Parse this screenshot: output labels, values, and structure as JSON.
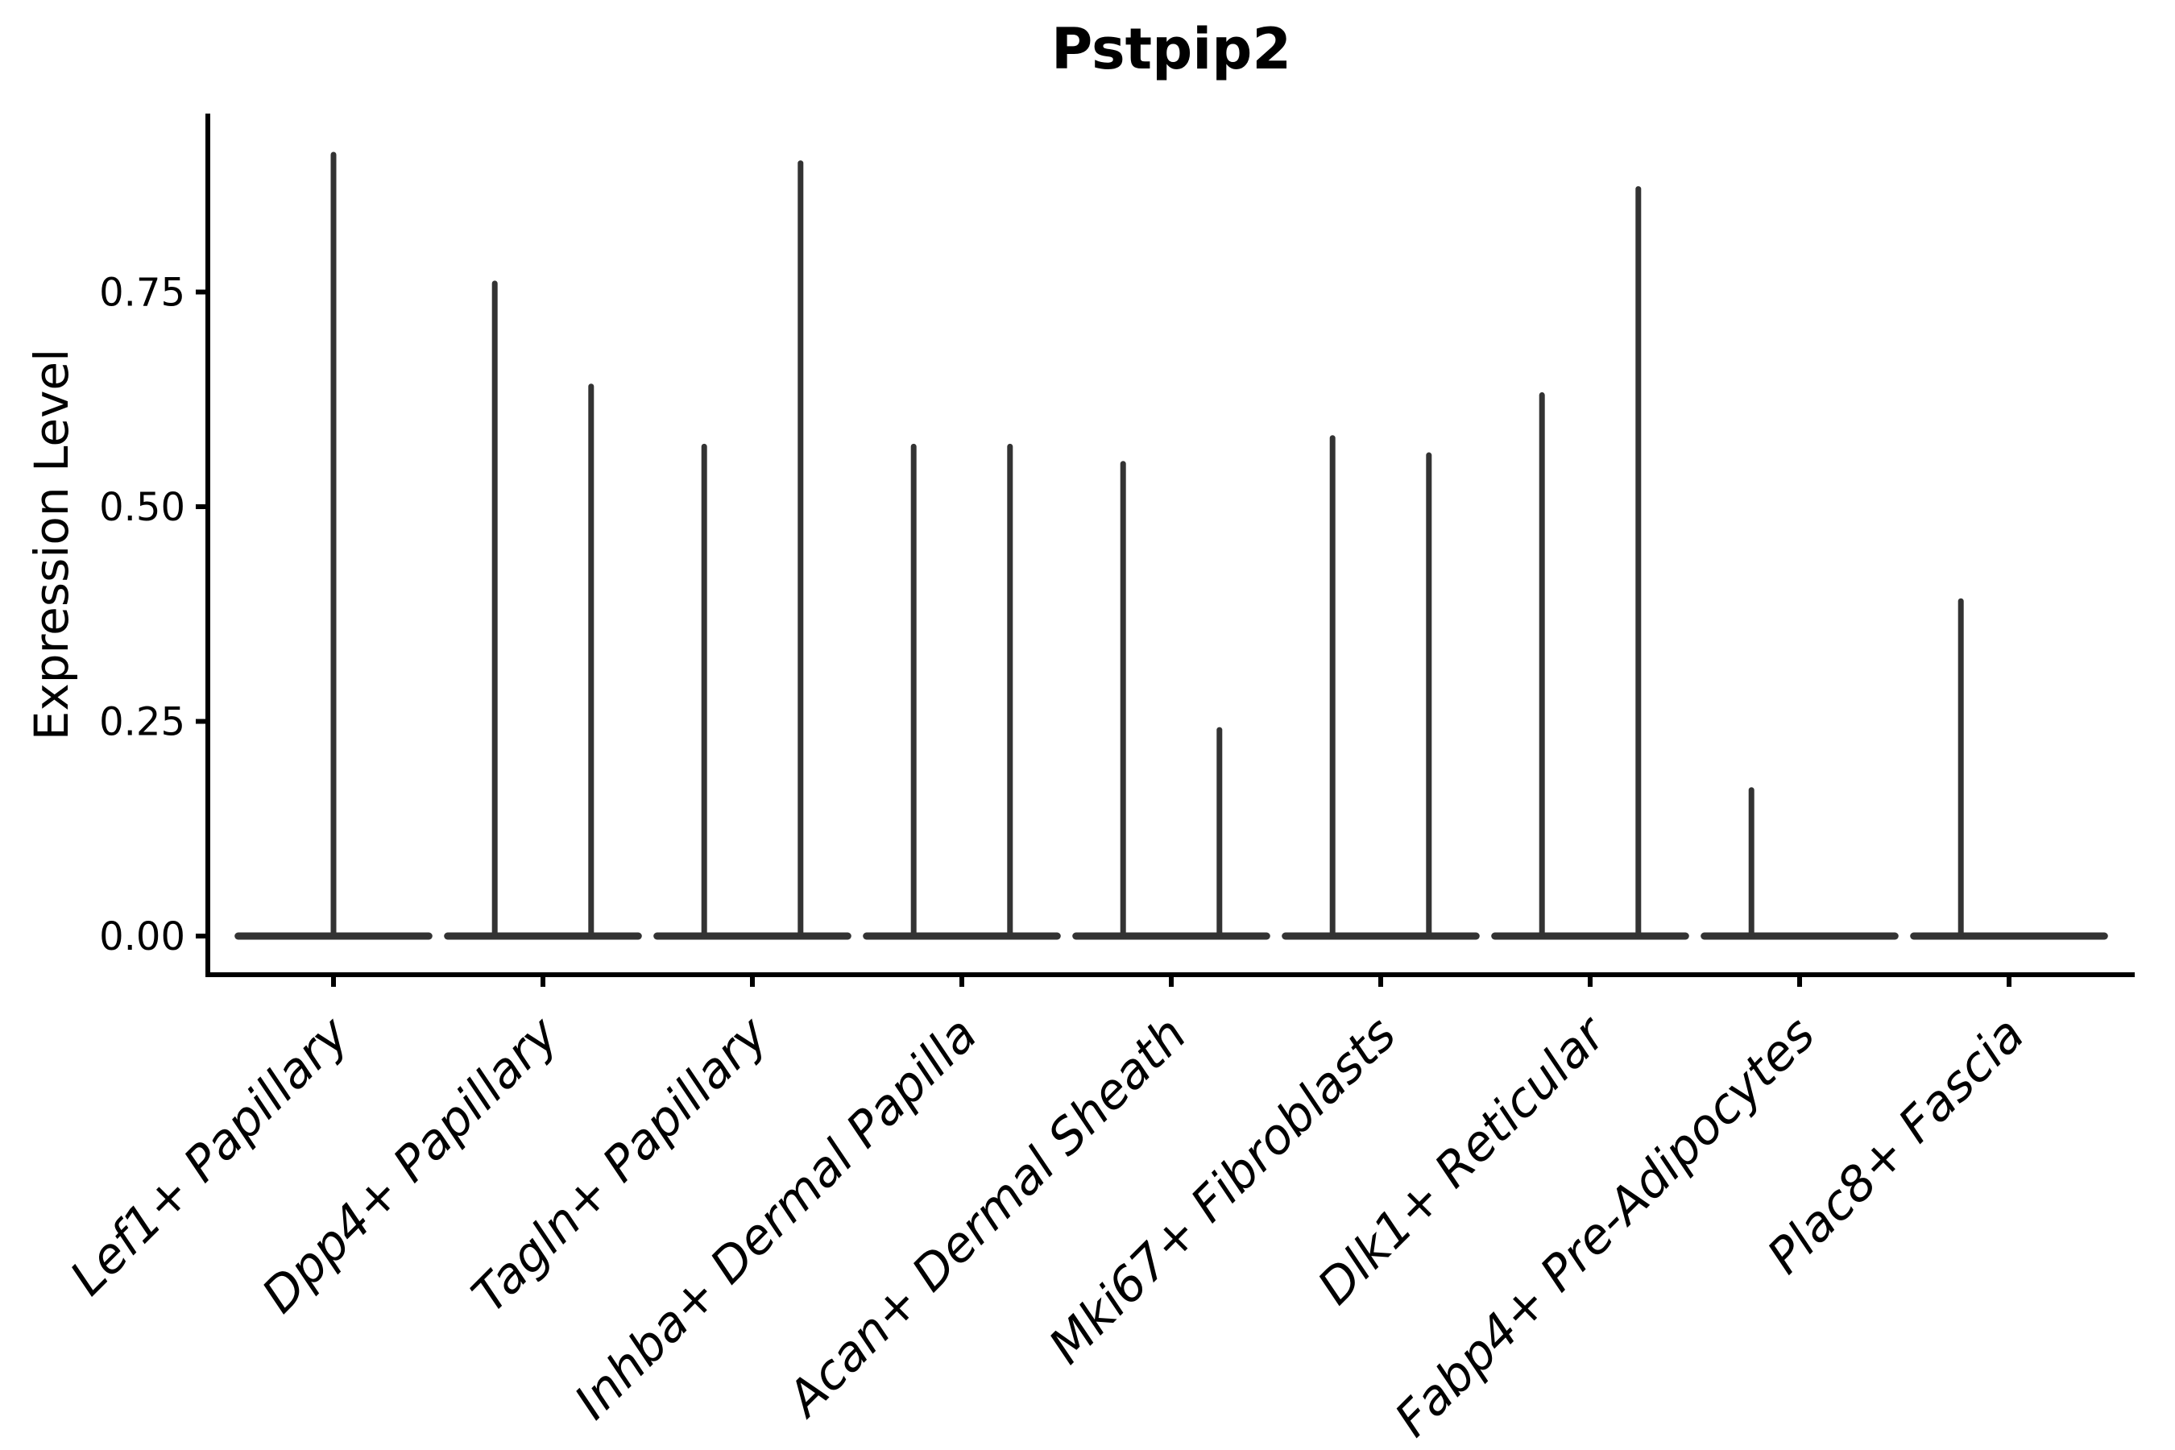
{
  "figure": {
    "title": "Pstpip2",
    "y_axis_label": "Expression Level"
  },
  "colors": {
    "background": "#ffffff",
    "axis": "#000000",
    "text": "#000000",
    "violin_stroke": "#333333"
  },
  "chart_data": {
    "type": "violin",
    "title": "Pstpip2",
    "xlabel": "",
    "ylabel": "Expression Level",
    "ylim": [
      -0.05,
      0.96
    ],
    "grid": false,
    "legend_position": "none",
    "y_tick_values": [
      0,
      0.25,
      0.5,
      0.75
    ],
    "y_tick_labels": [
      "0.00",
      "0.25",
      "0.50",
      "0.75"
    ],
    "x_tick_angle_deg": 45,
    "categories": [
      "Lef1+ Papillary",
      "Dpp4+ Papillary",
      "Tagln+ Papillary",
      "Inhba+ Dermal Papilla",
      "Acan+ Dermal Sheath",
      "Mki67+ Fibroblasts",
      "Dlk1+ Reticular",
      "Fabp4+ Pre-Adipocytes",
      "Plac8+ Fascia"
    ],
    "base_value": 0,
    "base_halfwidth_units": 0.455,
    "violins": [
      {
        "category": "Lef1+ Papillary",
        "spikes": [
          {
            "offset": 0.0,
            "max": 0.91
          }
        ]
      },
      {
        "category": "Dpp4+ Papillary",
        "spikes": [
          {
            "offset": -0.23,
            "max": 0.76
          },
          {
            "offset": 0.23,
            "max": 0.64
          }
        ]
      },
      {
        "category": "Tagln+ Papillary",
        "spikes": [
          {
            "offset": -0.23,
            "max": 0.57
          },
          {
            "offset": 0.23,
            "max": 0.9
          }
        ]
      },
      {
        "category": "Inhba+ Dermal Papilla",
        "spikes": [
          {
            "offset": -0.23,
            "max": 0.57
          },
          {
            "offset": 0.23,
            "max": 0.57
          }
        ]
      },
      {
        "category": "Acan+ Dermal Sheath",
        "spikes": [
          {
            "offset": -0.23,
            "max": 0.55
          },
          {
            "offset": 0.23,
            "max": 0.24
          }
        ]
      },
      {
        "category": "Mki67+ Fibroblasts",
        "spikes": [
          {
            "offset": -0.23,
            "max": 0.58
          },
          {
            "offset": 0.23,
            "max": 0.56
          }
        ]
      },
      {
        "category": "Dlk1+ Reticular",
        "spikes": [
          {
            "offset": -0.23,
            "max": 0.63
          },
          {
            "offset": 0.23,
            "max": 0.87
          }
        ]
      },
      {
        "category": "Fabp4+ Pre-Adipocytes",
        "spikes": [
          {
            "offset": -0.23,
            "max": 0.17
          }
        ]
      },
      {
        "category": "Plac8+ Fascia",
        "spikes": [
          {
            "offset": -0.23,
            "max": 0.39
          }
        ]
      }
    ],
    "note": "Zero-inflated expression: each violin is a flat bar at 0 with thin spikes rising to the maximum expression values"
  }
}
